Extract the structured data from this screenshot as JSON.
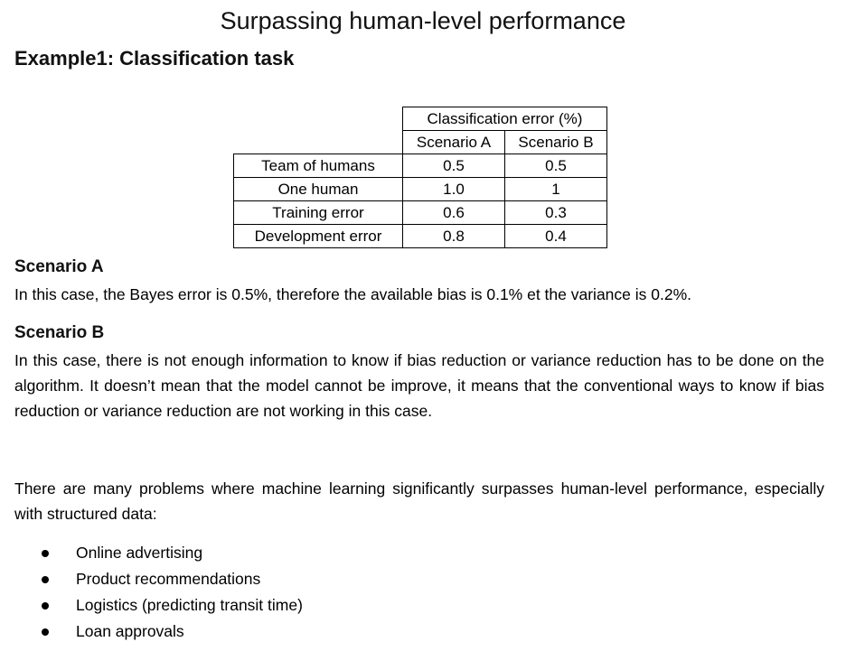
{
  "title": "Surpassing human-level performance",
  "subtitle": "Example1: Classification task",
  "table": {
    "header": "Classification error (%)",
    "columns": [
      "Scenario A",
      "Scenario B"
    ],
    "rows": [
      {
        "label": "Team of humans",
        "a": "0.5",
        "b": "0.5"
      },
      {
        "label": "One human",
        "a": "1.0",
        "b": "1"
      },
      {
        "label": "Training error",
        "a": "0.6",
        "b": "0.3"
      },
      {
        "label": "Development error",
        "a": "0.8",
        "b": "0.4"
      }
    ]
  },
  "scenario_a": {
    "heading": "Scenario A",
    "text": "In this case, the Bayes error is 0.5%, therefore the available bias is 0.1% et the variance is 0.2%."
  },
  "scenario_b": {
    "heading": "Scenario B",
    "text": "In this case, there is not enough information to know if bias reduction or variance reduction has to be done on the algorithm. It doesn’t mean that the model cannot be improve, it means that the conventional ways to know if bias reduction or variance reduction are not working in this case."
  },
  "intro": " There are many problems where machine learning significantly surpasses human-level performance, especially with structured data:",
  "bullets": [
    "Online advertising",
    "Product recommendations",
    "Logistics (predicting transit time)",
    "Loan approvals"
  ]
}
